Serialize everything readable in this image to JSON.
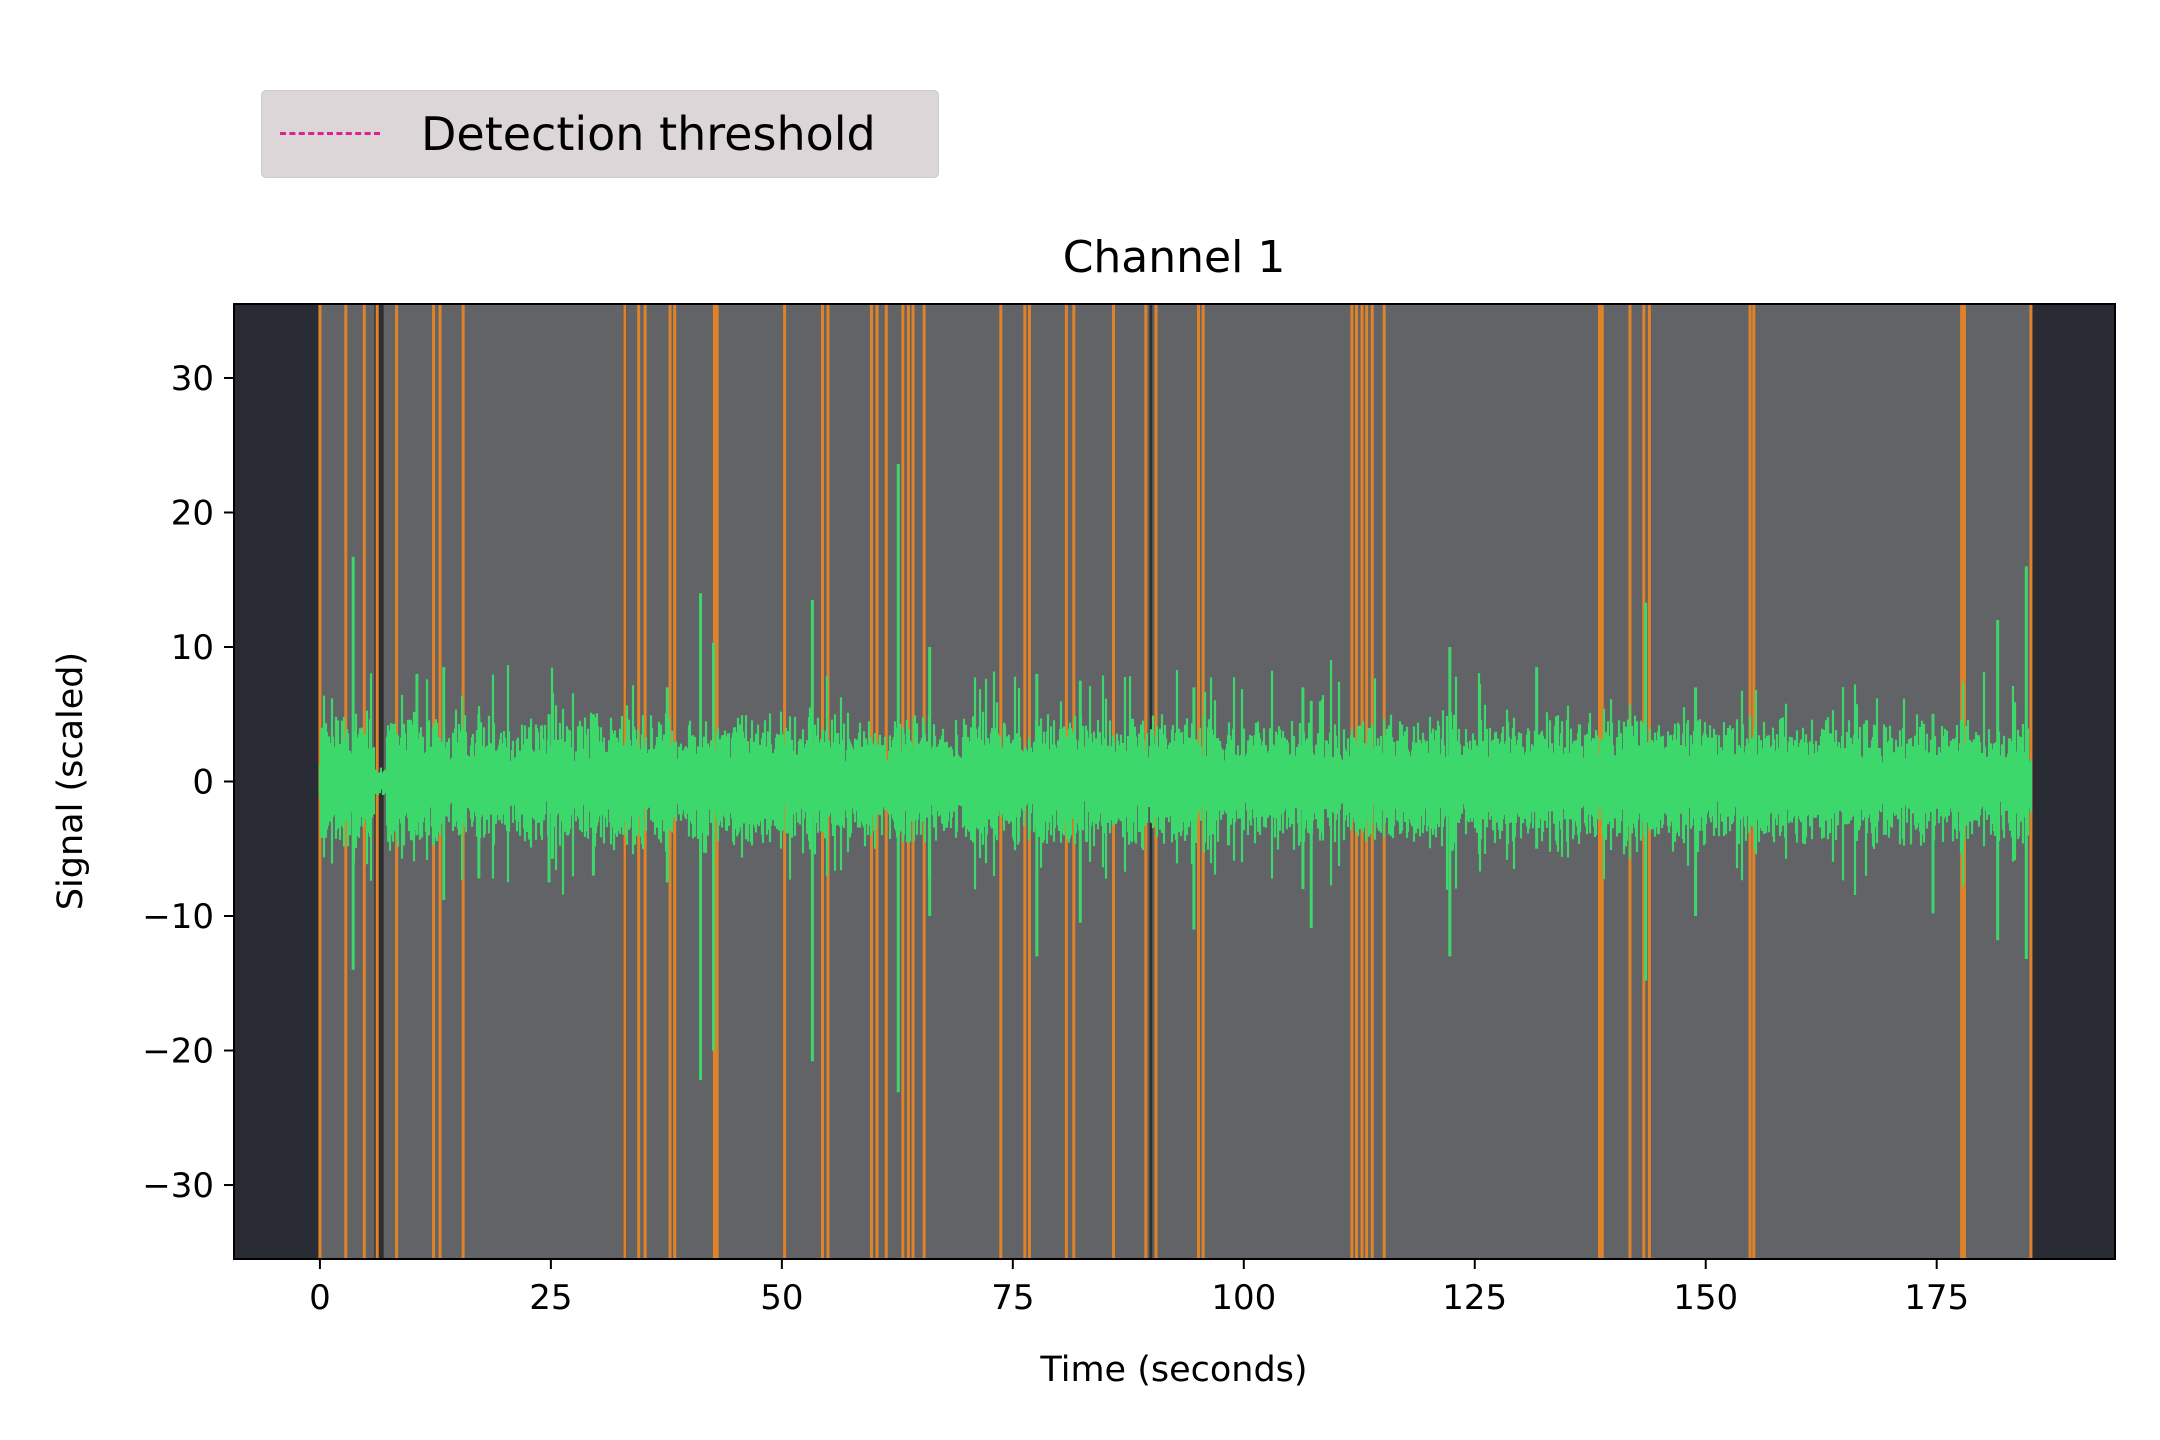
{
  "chart_data": {
    "type": "line",
    "title": "Channel 1",
    "xlabel": "Time (seconds)",
    "ylabel": "Signal (scaled)",
    "xlim": [
      -9.3,
      194.3
    ],
    "ylim": [
      -35.5,
      35.5
    ],
    "x_ticks": [
      0,
      25,
      50,
      75,
      100,
      125,
      150,
      175
    ],
    "y_ticks": [
      -30,
      -20,
      -10,
      0,
      10,
      20,
      30
    ],
    "x_tick_labels": [
      "0",
      "25",
      "50",
      "75",
      "100",
      "125",
      "150",
      "175"
    ],
    "y_tick_labels": [
      "−30",
      "−20",
      "−10",
      "0",
      "10",
      "20",
      "30"
    ],
    "legend": {
      "placement": "top-left, above axes",
      "entries": [
        {
          "label": "Detection threshold",
          "color": "#e0218a",
          "style": "dashed"
        }
      ]
    },
    "colors": {
      "background": "#292b35",
      "recording_region": "#626366",
      "signal": "#3dd86c",
      "event_markers": "#e08328",
      "event_gaps": "#2e2e32"
    },
    "recording_span": [
      0,
      185.2
    ],
    "series": [
      {
        "name": "signal",
        "color": "#3dd86c",
        "baseline_amplitude": 3,
        "peaks": [
          {
            "x": 0.2,
            "max": 4,
            "min": -4.2
          },
          {
            "x": 3.6,
            "max": 16.7,
            "min": -14
          },
          {
            "x": 10.5,
            "max": 8,
            "min": -4
          },
          {
            "x": 13.4,
            "max": 8.5,
            "min": -8.8
          },
          {
            "x": 17.2,
            "max": 5,
            "min": -7.2
          },
          {
            "x": 24.8,
            "max": 5,
            "min": -7.5
          },
          {
            "x": 29.6,
            "max": 5,
            "min": -7
          },
          {
            "x": 37.6,
            "max": 7,
            "min": -7.5
          },
          {
            "x": 41.2,
            "max": 14,
            "min": -22.2
          },
          {
            "x": 42.6,
            "max": 10.3,
            "min": -20
          },
          {
            "x": 53.3,
            "max": 13.5,
            "min": -20.8
          },
          {
            "x": 62.6,
            "max": 23.6,
            "min": -23.1
          },
          {
            "x": 66.0,
            "max": 10,
            "min": -10
          },
          {
            "x": 77.6,
            "max": 8,
            "min": -13
          },
          {
            "x": 82.3,
            "max": 7.5,
            "min": -10.5
          },
          {
            "x": 94.6,
            "max": 7,
            "min": -11
          },
          {
            "x": 106.4,
            "max": 7,
            "min": -8
          },
          {
            "x": 107.3,
            "max": 6,
            "min": -10.9
          },
          {
            "x": 122.3,
            "max": 10,
            "min": -13
          },
          {
            "x": 131.7,
            "max": 8.5,
            "min": -5
          },
          {
            "x": 143.5,
            "max": 13.3,
            "min": -14.8
          },
          {
            "x": 148.9,
            "max": 7,
            "min": -10
          },
          {
            "x": 174.6,
            "max": 5,
            "min": -9.8
          },
          {
            "x": 181.6,
            "max": 12,
            "min": -11.8
          },
          {
            "x": 184.7,
            "max": 16,
            "min": -13.2
          }
        ]
      }
    ],
    "event_markers_x": [
      0,
      2.8,
      4.8,
      6.2,
      8.3,
      12.3,
      13.0,
      15.5,
      33.0,
      34.5,
      35.2,
      37.9,
      38.4,
      42.7,
      43.0,
      50.3,
      54.4,
      55.0,
      59.7,
      60.3,
      61.3,
      63.1,
      63.7,
      64.2,
      65.4,
      73.7,
      76.3,
      76.8,
      80.8,
      81.6,
      85.9,
      89.4,
      90.5,
      95.1,
      95.6,
      111.7,
      112.2,
      112.8,
      113.3,
      113.9,
      115.2,
      138.5,
      138.8,
      141.8,
      143.3,
      143.9,
      154.8,
      155.2,
      177.7,
      178.0,
      185.2
    ],
    "event_gaps": [
      [
        5.9,
        6.9
      ],
      [
        32.8,
        33.2
      ],
      [
        89.8,
        90.1
      ]
    ]
  }
}
